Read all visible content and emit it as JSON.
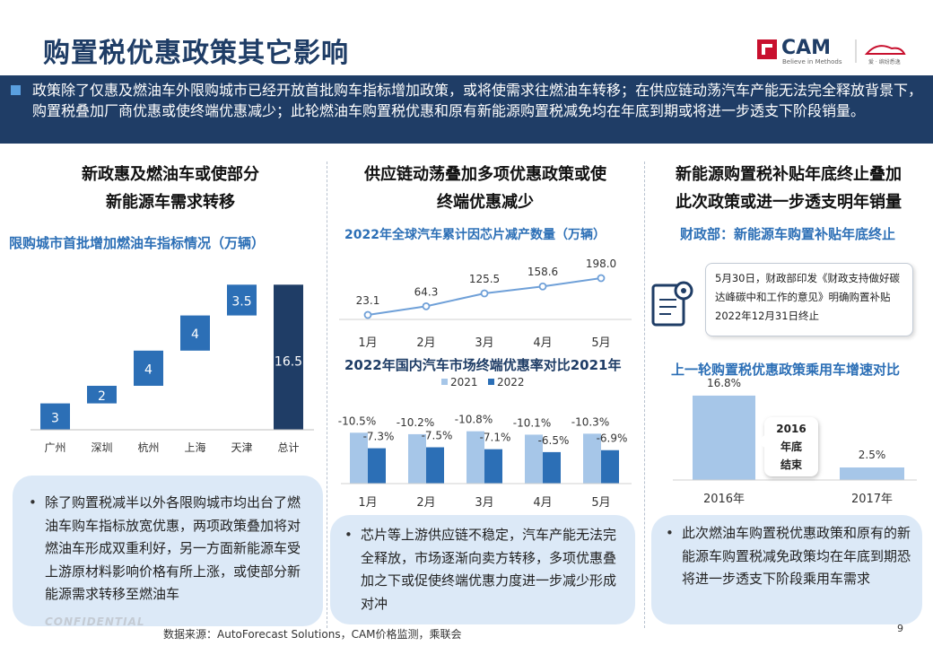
{
  "title": "购置税优惠政策其它影响",
  "logo": {
    "name": "CAM",
    "tagline": "Believe in Methods",
    "partner": "爱 · 缤纷悉逸"
  },
  "banner": "政策除了仅惠及燃油车外限购城市已经开放首批购车指标增加政策，或将使需求往燃油车转移；在供应链动荡汽车产能无法完全释放背景下，购置税叠加厂商优惠或使终端优惠减少；此轮燃油车购置税优惠和原有新能源购置税减免均在年底到期或将进一步透支下阶段销量。",
  "columns": [
    {
      "heading_line1": "新政惠及燃油车或使部分",
      "heading_line2": "新能源车需求转移",
      "subhead": "限购城市首批增加燃油车指标情况（万辆）",
      "note": "除了购置税减半以外各限购城市均出台了燃油车购车指标放宽优惠，两项政策叠加将对燃油车形成双重利好，另一方面新能源车受上游原材料影响价格有所上涨，或使部分新能源需求转移至燃油车"
    },
    {
      "heading_line1": "供应链动荡叠加多项优惠政策或使",
      "heading_line2": "终端优惠减少",
      "subhead1": "2022年全球汽车累计因芯片减产数量（万辆）",
      "subhead2": "2022年国内汽车市场终端优惠率对比2021年",
      "note": "芯片等上游供应链不稳定，汽车产能无法完全释放，市场逐渐向卖方转移，多项优惠叠加之下或促使终端优惠力度进一步减少形成对冲"
    },
    {
      "heading_line1": "新能源购置税补贴年底终止叠加",
      "heading_line2": "此次政策或进一步透支明年销量",
      "subhead1": "财政部：新能源车购置补贴年底终止",
      "notice": "5月30日，财政部印发《财政支持做好碳达峰碳中和工作的意见》明确购置补贴2022年12月31日终止",
      "subhead2": "上一轮购置税优惠政策乘用车增速对比",
      "bubble": [
        "2016",
        "年底",
        "结束"
      ],
      "note": "此次燃油车购置税优惠政策和原有的新能源车购置税减免政策均在年底到期恐将进一步透支下阶段乘用车需求"
    }
  ],
  "chart_data": [
    {
      "type": "bar",
      "subtype": "waterfall",
      "title": "限购城市首批增加燃油车指标情况（万辆）",
      "categories": [
        "广州",
        "深圳",
        "杭州",
        "上海",
        "天津",
        "总计"
      ],
      "values": [
        3,
        2,
        4,
        4,
        3.5,
        16.5
      ],
      "value_labels": [
        "3",
        "2",
        "4",
        "4",
        "3.5",
        "16.5"
      ],
      "colors": {
        "step": "#2c6fb6",
        "total": "#1f3d66"
      }
    },
    {
      "type": "line",
      "title": "2022年全球汽车累计因芯片减产数量（万辆）",
      "categories": [
        "1月",
        "2月",
        "3月",
        "4月",
        "5月"
      ],
      "values": [
        23.1,
        64.3,
        125.5,
        158.6,
        198.0
      ],
      "value_labels": [
        "23.1",
        "64.3",
        "125.5",
        "158.6",
        "198.0"
      ],
      "color": "#6fa0d8"
    },
    {
      "type": "bar",
      "title": "2022年国内汽车市场终端优惠率对比2021年",
      "categories": [
        "1月",
        "2月",
        "3月",
        "4月",
        "5月"
      ],
      "series": [
        {
          "name": "2021",
          "values": [
            -10.5,
            -10.2,
            -10.8,
            -10.1,
            -10.3
          ],
          "labels": [
            "-10.5%",
            "-10.2%",
            "-10.8%",
            "-10.1%",
            "-10.3%"
          ],
          "color": "#a6c6e8"
        },
        {
          "name": "2022",
          "values": [
            -7.3,
            -7.5,
            -7.1,
            -6.5,
            -6.9
          ],
          "labels": [
            "-7.3%",
            "-7.5%",
            "-7.1%",
            "-6.5%",
            "-6.9%"
          ],
          "color": "#2c6fb6"
        }
      ],
      "legend": "top"
    },
    {
      "type": "bar",
      "title": "上一轮购置税优惠政策乘用车增速对比",
      "categories": [
        "2016年",
        "2017年"
      ],
      "values": [
        16.8,
        2.5
      ],
      "value_labels": [
        "16.8%",
        "2.5%"
      ],
      "colors": [
        "#a6c6e8",
        "#a6c6e8"
      ]
    }
  ],
  "source": "数据来源：AutoForecast Solutions，CAM价格监测，乘联会",
  "confidential": "CONFIDENTIAL",
  "page_number": "9"
}
